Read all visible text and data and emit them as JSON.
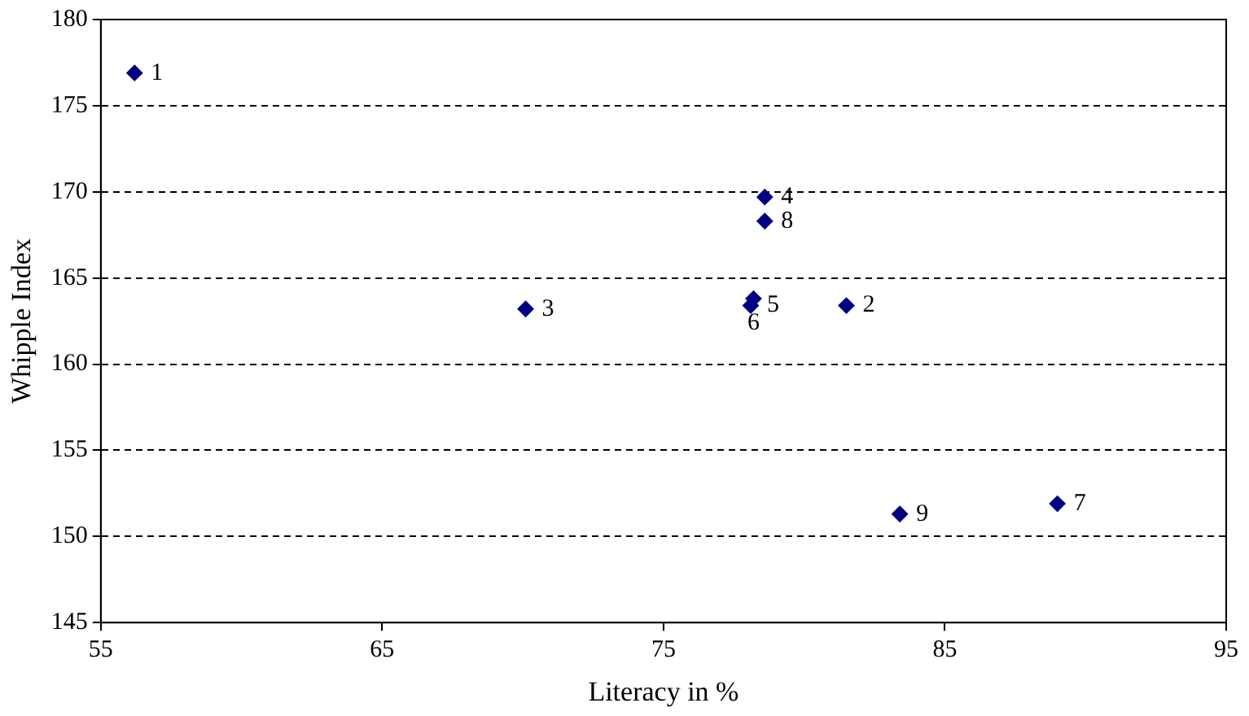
{
  "chart_data": {
    "type": "scatter",
    "xlabel": "Literacy in %",
    "ylabel": "Whipple Index",
    "series": [
      {
        "color": "#000080",
        "x": [
          56.2,
          81.5,
          70.1,
          78.6,
          78.1,
          78.2,
          89.0,
          78.6,
          83.4
        ],
        "values": [
          176.9,
          163.4,
          163.2,
          169.7,
          163.4,
          163.8,
          151.9,
          168.3,
          151.3
        ]
      }
    ],
    "xlim": [
      55,
      95
    ],
    "xticks": [
      55,
      65,
      75,
      85,
      95
    ],
    "ylim": [
      145,
      180
    ],
    "yticks": [
      145,
      150,
      155,
      160,
      165,
      170,
      175,
      180
    ],
    "grid": "y",
    "legend": false,
    "marker": "diamond",
    "annotations": [
      {
        "text": "1",
        "x": 56.2,
        "y": 176.9
      },
      {
        "text": "2",
        "x": 81.5,
        "y": 163.4
      },
      {
        "text": "3",
        "x": 70.1,
        "y": 163.2
      },
      {
        "text": "4",
        "x": 78.6,
        "y": 169.7
      },
      {
        "text": "5",
        "x": 78.1,
        "y": 163.4
      },
      {
        "text": "6",
        "x": 78.2,
        "y": 163.8
      },
      {
        "text": "7",
        "x": 89.0,
        "y": 151.9
      },
      {
        "text": "8",
        "x": 78.6,
        "y": 168.3
      },
      {
        "text": "9",
        "x": 83.4,
        "y": 151.3
      }
    ]
  }
}
